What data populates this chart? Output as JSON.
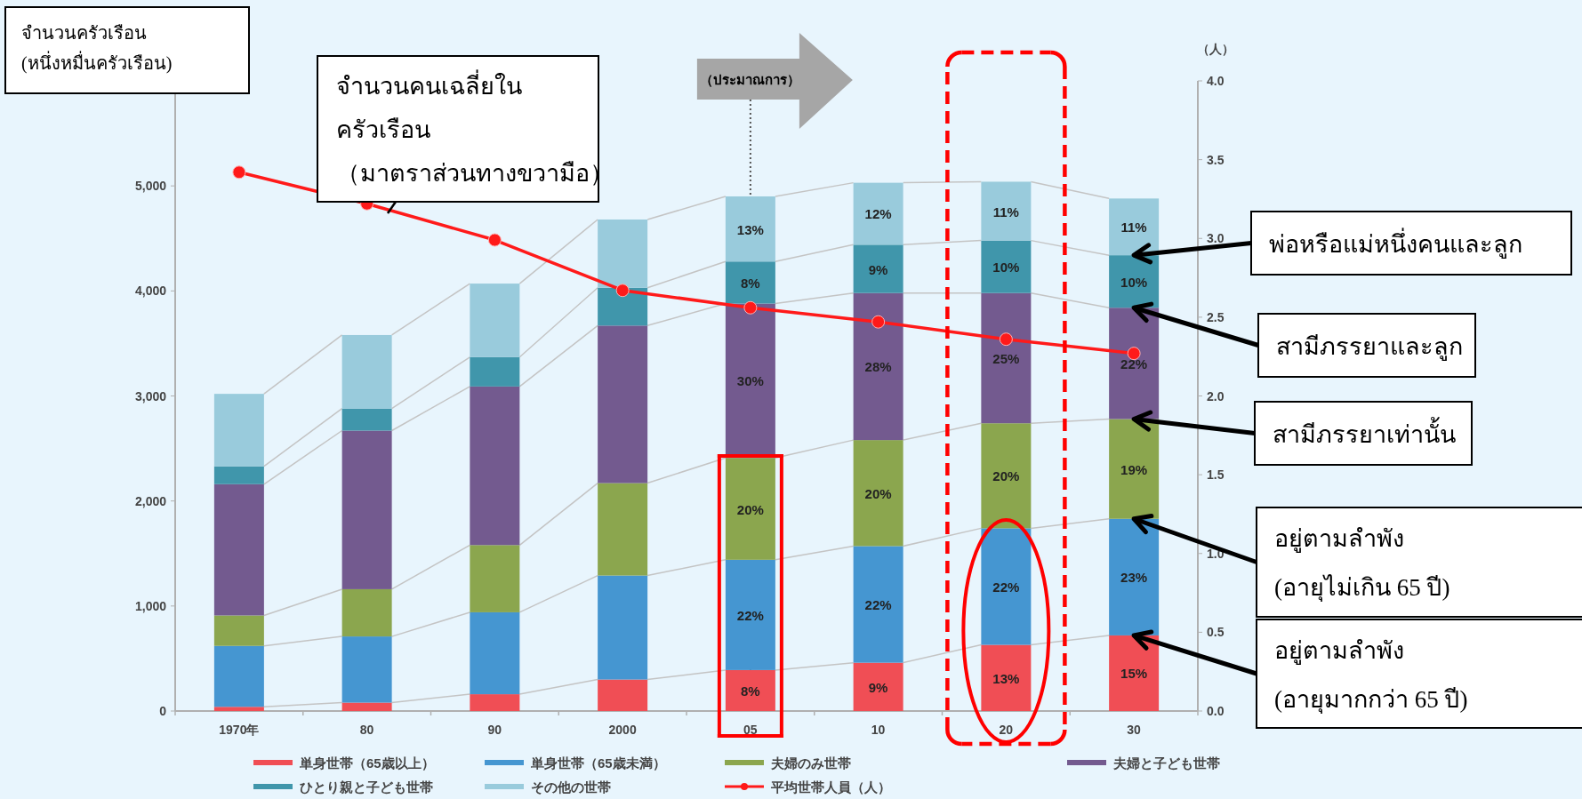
{
  "chart_data": {
    "type": "bar",
    "stacked": true,
    "legend": "bottom",
    "marker": "circle",
    "categories": [
      "1970年",
      "80",
      "90",
      "2000",
      "05",
      "10",
      "20",
      "30"
    ],
    "ylabel": "จำนวนครัวเรือน\n(หนึ่งหมื่นครัวเรือน)",
    "y2label": "（人）",
    "ylim": [
      0,
      6000
    ],
    "yticks": [
      {
        "value": 0,
        "label": "0"
      },
      {
        "value": 1000,
        "label": "1,000"
      },
      {
        "value": 2000,
        "label": "2,000"
      },
      {
        "value": 3000,
        "label": "3,000"
      },
      {
        "value": 4000,
        "label": "4,000"
      },
      {
        "value": 5000,
        "label": "5,000"
      }
    ],
    "y2lim": [
      0,
      4
    ],
    "y2ticks": [
      {
        "value": 0,
        "label": "0.0"
      },
      {
        "value": 0.5,
        "label": "0.5"
      },
      {
        "value": 1,
        "label": "1.0"
      },
      {
        "value": 1.5,
        "label": "1.5"
      },
      {
        "value": 2,
        "label": "2.0"
      },
      {
        "value": 2.5,
        "label": "2.5"
      },
      {
        "value": 3,
        "label": "3.0"
      },
      {
        "value": 3.5,
        "label": "3.5"
      },
      {
        "value": 4,
        "label": "4.0"
      }
    ],
    "series": [
      {
        "name": "単身世帯（65歳以上）",
        "color": "#f04e55",
        "values": [
          40,
          80,
          160,
          300,
          390,
          460,
          630,
          720
        ]
      },
      {
        "name": "単身世帯（65歳未満）",
        "color": "#4596d1",
        "values": [
          580,
          630,
          780,
          990,
          1050,
          1110,
          1110,
          1110
        ]
      },
      {
        "name": "夫婦のみ世帯",
        "color": "#8ba64e",
        "values": [
          290,
          450,
          640,
          880,
          970,
          1010,
          1000,
          950
        ]
      },
      {
        "name": "夫婦と子ども世帯",
        "color": "#735a8f",
        "values": [
          1250,
          1510,
          1510,
          1500,
          1470,
          1400,
          1240,
          1060
        ]
      },
      {
        "name": "ひとり親と子ども世帯",
        "color": "#4096ab",
        "values": [
          170,
          210,
          280,
          360,
          400,
          460,
          500,
          500
        ]
      },
      {
        "name": "その他の世帯",
        "color": "#99cbdc",
        "values": [
          690,
          700,
          700,
          650,
          620,
          590,
          560,
          540
        ]
      },
      {
        "name": "平均世帯人員（人）",
        "type": "line",
        "axis": "y2",
        "color": "#ff1a1a",
        "values": [
          3.42,
          3.22,
          2.99,
          2.67,
          2.56,
          2.47,
          2.36,
          2.27
        ]
      }
    ],
    "ref_lines": [
      {
        "axis": "x",
        "value": "05",
        "label": "（ประมาณการ）",
        "line_style": "dotted"
      }
    ],
    "annotations": [
      "จำนวนคนเฉลี่ยใน\nครัวเรือน\n（มาตราส่วนทางขวามือ）",
      {
        "text": "พ่อหรือแม่หนึ่งคนและลูก",
        "x": "30",
        "y": 4340
      },
      {
        "text": "สามีภรรยาและลูก",
        "x": "30",
        "y": 3840
      },
      {
        "text": "สามีภรรยาเท่านั้น",
        "x": "30",
        "y": 2780
      },
      {
        "text": "อยู่ตามลำพัง\n(อายุไม่เกิน 65 ปี)",
        "x": "30",
        "y": 1830
      },
      {
        "text": "อยู่ตามลำพัง\n(อายุมากกว่า 65 ปี)",
        "x": "30",
        "y": 720
      },
      "8%",
      "22%",
      "20%",
      "30%",
      "8%",
      "13%",
      "9%",
      "22%",
      "20%",
      "28%",
      "9%",
      "12%",
      "13%",
      "22%",
      "20%",
      "25%",
      "10%",
      "11%",
      "15%",
      "23%",
      "19%",
      "22%",
      "10%",
      "11%"
    ]
  }
}
